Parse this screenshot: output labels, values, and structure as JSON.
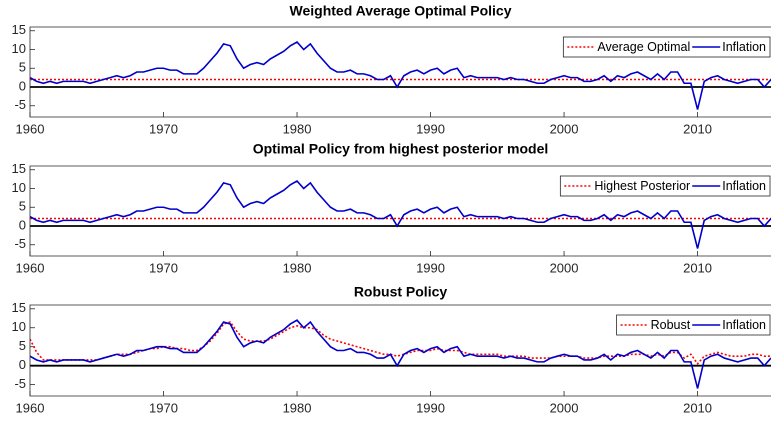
{
  "chart_data": [
    {
      "type": "line",
      "title": "Weighted Average Optimal Policy",
      "x": [
        1960,
        1960.5,
        1961,
        1961.5,
        1962,
        1962.5,
        1963,
        1963.5,
        1964,
        1964.5,
        1965,
        1965.5,
        1966,
        1966.5,
        1967,
        1967.5,
        1968,
        1968.5,
        1969,
        1969.5,
        1970,
        1970.5,
        1971,
        1971.5,
        1972,
        1972.5,
        1973,
        1973.5,
        1974,
        1974.5,
        1975,
        1975.5,
        1976,
        1976.5,
        1977,
        1977.5,
        1978,
        1978.5,
        1979,
        1979.5,
        1980,
        1980.5,
        1981,
        1981.5,
        1982,
        1982.5,
        1983,
        1983.5,
        1984,
        1984.5,
        1985,
        1985.5,
        1986,
        1986.5,
        1987,
        1987.5,
        1988,
        1988.5,
        1989,
        1989.5,
        1990,
        1990.5,
        1991,
        1991.5,
        1992,
        1992.5,
        1993,
        1993.5,
        1994,
        1994.5,
        1995,
        1995.5,
        1996,
        1996.5,
        1997,
        1997.5,
        1998,
        1998.5,
        1999,
        1999.5,
        2000,
        2000.5,
        2001,
        2001.5,
        2002,
        2002.5,
        2003,
        2003.5,
        2004,
        2004.5,
        2005,
        2005.5,
        2006,
        2006.5,
        2007,
        2007.5,
        2008,
        2008.5,
        2009,
        2009.5,
        2010,
        2010.5,
        2011,
        2011.5,
        2012,
        2012.5,
        2013,
        2013.5,
        2014,
        2014.5,
        2015,
        2015.5
      ],
      "series": [
        {
          "name": "Average Optimal",
          "color": "#ff0000",
          "style": "dotted",
          "values": [
            2,
            2,
            2,
            2,
            2,
            2,
            2,
            2,
            2,
            2,
            2,
            2,
            2,
            2,
            2,
            2,
            2,
            2,
            2,
            2,
            2,
            2,
            2,
            2,
            2,
            2,
            2,
            2,
            2,
            2,
            2,
            2,
            2,
            2,
            2,
            2,
            2,
            2,
            2,
            2,
            2,
            2,
            2,
            2,
            2,
            2,
            2,
            2,
            2,
            2,
            2,
            2,
            2,
            2,
            2,
            2,
            2,
            2,
            2,
            2,
            2,
            2,
            2,
            2,
            2,
            2,
            2,
            2,
            2,
            2,
            2,
            2,
            2,
            2,
            2,
            2,
            2,
            2,
            2,
            2,
            2,
            2,
            2,
            2,
            2,
            2,
            2,
            2,
            2,
            2,
            2,
            2,
            2,
            2,
            2,
            2,
            2,
            2,
            2,
            2,
            2,
            2,
            2,
            2,
            2,
            2,
            2,
            2,
            2,
            2,
            2,
            2
          ]
        },
        {
          "name": "Inflation",
          "color": "#0000cc",
          "style": "solid",
          "values": [
            2.5,
            1.5,
            1,
            1.5,
            1,
            1.5,
            1.5,
            1.5,
            1.5,
            1,
            1.5,
            2,
            2.5,
            3,
            2.5,
            3,
            4,
            4,
            4.5,
            5,
            5,
            4.5,
            4.5,
            3.5,
            3.5,
            3.5,
            5,
            7,
            9,
            11.5,
            11,
            7.5,
            5,
            6,
            6.5,
            6,
            7.5,
            8.5,
            9.5,
            11,
            12,
            10,
            11.5,
            9,
            7,
            5,
            4,
            4,
            4.5,
            3.5,
            3.5,
            3,
            2,
            2,
            3,
            0,
            3,
            4,
            4.5,
            3.5,
            4.5,
            5,
            3.5,
            4.5,
            5,
            2.5,
            3,
            2.5,
            2.5,
            2.5,
            2.5,
            2,
            2.5,
            2,
            2,
            1.5,
            1,
            1,
            2,
            2.5,
            3,
            2.5,
            2.5,
            1.5,
            1.5,
            2,
            3,
            1.5,
            3,
            2.5,
            3.5,
            4,
            3,
            2,
            3.5,
            2,
            4,
            4,
            1,
            1,
            -6,
            1.5,
            2.5,
            3,
            2,
            1.5,
            1,
            1.5,
            2,
            2,
            0,
            2
          ]
        }
      ],
      "xlim": [
        1960,
        2015.5
      ],
      "xticks": [
        1960,
        1970,
        1980,
        1990,
        2000,
        2010
      ],
      "ylim": [
        -8,
        16
      ],
      "yticks": [
        -5,
        0,
        5,
        10,
        15
      ],
      "legend": "northeast",
      "grid": false
    },
    {
      "type": "line",
      "title": "Optimal Policy from highest posterior model",
      "x": [
        1960,
        1960.5,
        1961,
        1961.5,
        1962,
        1962.5,
        1963,
        1963.5,
        1964,
        1964.5,
        1965,
        1965.5,
        1966,
        1966.5,
        1967,
        1967.5,
        1968,
        1968.5,
        1969,
        1969.5,
        1970,
        1970.5,
        1971,
        1971.5,
        1972,
        1972.5,
        1973,
        1973.5,
        1974,
        1974.5,
        1975,
        1975.5,
        1976,
        1976.5,
        1977,
        1977.5,
        1978,
        1978.5,
        1979,
        1979.5,
        1980,
        1980.5,
        1981,
        1981.5,
        1982,
        1982.5,
        1983,
        1983.5,
        1984,
        1984.5,
        1985,
        1985.5,
        1986,
        1986.5,
        1987,
        1987.5,
        1988,
        1988.5,
        1989,
        1989.5,
        1990,
        1990.5,
        1991,
        1991.5,
        1992,
        1992.5,
        1993,
        1993.5,
        1994,
        1994.5,
        1995,
        1995.5,
        1996,
        1996.5,
        1997,
        1997.5,
        1998,
        1998.5,
        1999,
        1999.5,
        2000,
        2000.5,
        2001,
        2001.5,
        2002,
        2002.5,
        2003,
        2003.5,
        2004,
        2004.5,
        2005,
        2005.5,
        2006,
        2006.5,
        2007,
        2007.5,
        2008,
        2008.5,
        2009,
        2009.5,
        2010,
        2010.5,
        2011,
        2011.5,
        2012,
        2012.5,
        2013,
        2013.5,
        2014,
        2014.5,
        2015,
        2015.5
      ],
      "series": [
        {
          "name": "Highest Posterior",
          "color": "#ff0000",
          "style": "dotted",
          "values": [
            2,
            2,
            2,
            2,
            2,
            2,
            2,
            2,
            2,
            2,
            2,
            2,
            2,
            2,
            2,
            2,
            2,
            2,
            2,
            2,
            2,
            2,
            2,
            2,
            2,
            2,
            2,
            2,
            2,
            2,
            2,
            2,
            2,
            2,
            2,
            2,
            2,
            2,
            2,
            2,
            2,
            2,
            2,
            2,
            2,
            2,
            2,
            2,
            2,
            2,
            2,
            2,
            2,
            2,
            2,
            2,
            2,
            2,
            2,
            2,
            2,
            2,
            2,
            2,
            2,
            2,
            2,
            2,
            2,
            2,
            2,
            2,
            2,
            2,
            2,
            2,
            2,
            2,
            2,
            2,
            2,
            2,
            2,
            2,
            2,
            2,
            2,
            2,
            2,
            2,
            2,
            2,
            2,
            2,
            2,
            2,
            2,
            2,
            2,
            2,
            2,
            2,
            2,
            2,
            2,
            2,
            2,
            2,
            2,
            2,
            2,
            2
          ]
        },
        {
          "name": "Inflation",
          "color": "#0000cc",
          "style": "solid",
          "values": [
            2.5,
            1.5,
            1,
            1.5,
            1,
            1.5,
            1.5,
            1.5,
            1.5,
            1,
            1.5,
            2,
            2.5,
            3,
            2.5,
            3,
            4,
            4,
            4.5,
            5,
            5,
            4.5,
            4.5,
            3.5,
            3.5,
            3.5,
            5,
            7,
            9,
            11.5,
            11,
            7.5,
            5,
            6,
            6.5,
            6,
            7.5,
            8.5,
            9.5,
            11,
            12,
            10,
            11.5,
            9,
            7,
            5,
            4,
            4,
            4.5,
            3.5,
            3.5,
            3,
            2,
            2,
            3,
            0,
            3,
            4,
            4.5,
            3.5,
            4.5,
            5,
            3.5,
            4.5,
            5,
            2.5,
            3,
            2.5,
            2.5,
            2.5,
            2.5,
            2,
            2.5,
            2,
            2,
            1.5,
            1,
            1,
            2,
            2.5,
            3,
            2.5,
            2.5,
            1.5,
            1.5,
            2,
            3,
            1.5,
            3,
            2.5,
            3.5,
            4,
            3,
            2,
            3.5,
            2,
            4,
            4,
            1,
            1,
            -6,
            1.5,
            2.5,
            3,
            2,
            1.5,
            1,
            1.5,
            2,
            2,
            0,
            2
          ]
        }
      ],
      "xlim": [
        1960,
        2015.5
      ],
      "xticks": [
        1960,
        1970,
        1980,
        1990,
        2000,
        2010
      ],
      "ylim": [
        -8,
        16
      ],
      "yticks": [
        -5,
        0,
        5,
        10,
        15
      ],
      "legend": "northeast",
      "grid": false
    },
    {
      "type": "line",
      "title": "Robust Policy",
      "x": [
        1960,
        1960.5,
        1961,
        1961.5,
        1962,
        1962.5,
        1963,
        1963.5,
        1964,
        1964.5,
        1965,
        1965.5,
        1966,
        1966.5,
        1967,
        1967.5,
        1968,
        1968.5,
        1969,
        1969.5,
        1970,
        1970.5,
        1971,
        1971.5,
        1972,
        1972.5,
        1973,
        1973.5,
        1974,
        1974.5,
        1975,
        1975.5,
        1976,
        1976.5,
        1977,
        1977.5,
        1978,
        1978.5,
        1979,
        1979.5,
        1980,
        1980.5,
        1981,
        1981.5,
        1982,
        1982.5,
        1983,
        1983.5,
        1984,
        1984.5,
        1985,
        1985.5,
        1986,
        1986.5,
        1987,
        1987.5,
        1988,
        1988.5,
        1989,
        1989.5,
        1990,
        1990.5,
        1991,
        1991.5,
        1992,
        1992.5,
        1993,
        1993.5,
        1994,
        1994.5,
        1995,
        1995.5,
        1996,
        1996.5,
        1997,
        1997.5,
        1998,
        1998.5,
        1999,
        1999.5,
        2000,
        2000.5,
        2001,
        2001.5,
        2002,
        2002.5,
        2003,
        2003.5,
        2004,
        2004.5,
        2005,
        2005.5,
        2006,
        2006.5,
        2007,
        2007.5,
        2008,
        2008.5,
        2009,
        2009.5,
        2010,
        2010.5,
        2011,
        2011.5,
        2012,
        2012.5,
        2013,
        2013.5,
        2014,
        2014.5,
        2015,
        2015.5
      ],
      "series": [
        {
          "name": "Robust",
          "color": "#ff0000",
          "style": "dotted",
          "values": [
            7,
            3.5,
            1.5,
            1.5,
            1.5,
            1.5,
            1.5,
            1.5,
            1.5,
            1.5,
            1.5,
            2,
            2.5,
            3,
            3,
            3,
            3.5,
            4,
            4.5,
            4.5,
            5,
            5,
            4.5,
            4.5,
            4,
            4,
            5,
            6.5,
            8.5,
            11,
            11.5,
            9,
            7,
            6.5,
            6.5,
            6.5,
            7,
            8,
            9,
            10,
            10.5,
            10,
            10,
            9.5,
            8,
            7,
            6.5,
            6,
            5.5,
            5,
            4.5,
            4,
            3.5,
            3,
            3,
            2.5,
            3,
            3.5,
            4,
            4,
            4,
            4.5,
            4,
            4,
            4,
            3.5,
            3,
            3,
            3,
            3,
            3,
            2.5,
            2.5,
            2.5,
            2.5,
            2,
            2,
            2,
            2,
            2.5,
            2.5,
            2.5,
            2.5,
            2,
            2,
            2,
            2.5,
            2.5,
            2.5,
            2.5,
            3,
            3,
            3,
            2.5,
            3,
            2.5,
            3.5,
            3.5,
            2,
            3,
            0.5,
            2.5,
            3,
            3.5,
            3,
            2.5,
            2.5,
            2.5,
            3,
            3,
            2.5,
            2.5
          ]
        },
        {
          "name": "Inflation",
          "color": "#0000cc",
          "style": "solid",
          "values": [
            2.5,
            1.5,
            1,
            1.5,
            1,
            1.5,
            1.5,
            1.5,
            1.5,
            1,
            1.5,
            2,
            2.5,
            3,
            2.5,
            3,
            4,
            4,
            4.5,
            5,
            5,
            4.5,
            4.5,
            3.5,
            3.5,
            3.5,
            5,
            7,
            9,
            11.5,
            11,
            7.5,
            5,
            6,
            6.5,
            6,
            7.5,
            8.5,
            9.5,
            11,
            12,
            10,
            11.5,
            9,
            7,
            5,
            4,
            4,
            4.5,
            3.5,
            3.5,
            3,
            2,
            2,
            3,
            0,
            3,
            4,
            4.5,
            3.5,
            4.5,
            5,
            3.5,
            4.5,
            5,
            2.5,
            3,
            2.5,
            2.5,
            2.5,
            2.5,
            2,
            2.5,
            2,
            2,
            1.5,
            1,
            1,
            2,
            2.5,
            3,
            2.5,
            2.5,
            1.5,
            1.5,
            2,
            3,
            1.5,
            3,
            2.5,
            3.5,
            4,
            3,
            2,
            3.5,
            2,
            4,
            4,
            1,
            1,
            -6,
            1.5,
            2.5,
            3,
            2,
            1.5,
            1,
            1.5,
            2,
            2,
            0,
            2
          ]
        }
      ],
      "xlim": [
        1960,
        2015.5
      ],
      "xticks": [
        1960,
        1970,
        1980,
        1990,
        2000,
        2010
      ],
      "ylim": [
        -8,
        16
      ],
      "yticks": [
        -5,
        0,
        5,
        10,
        15
      ],
      "legend": "northeast",
      "grid": false
    }
  ]
}
